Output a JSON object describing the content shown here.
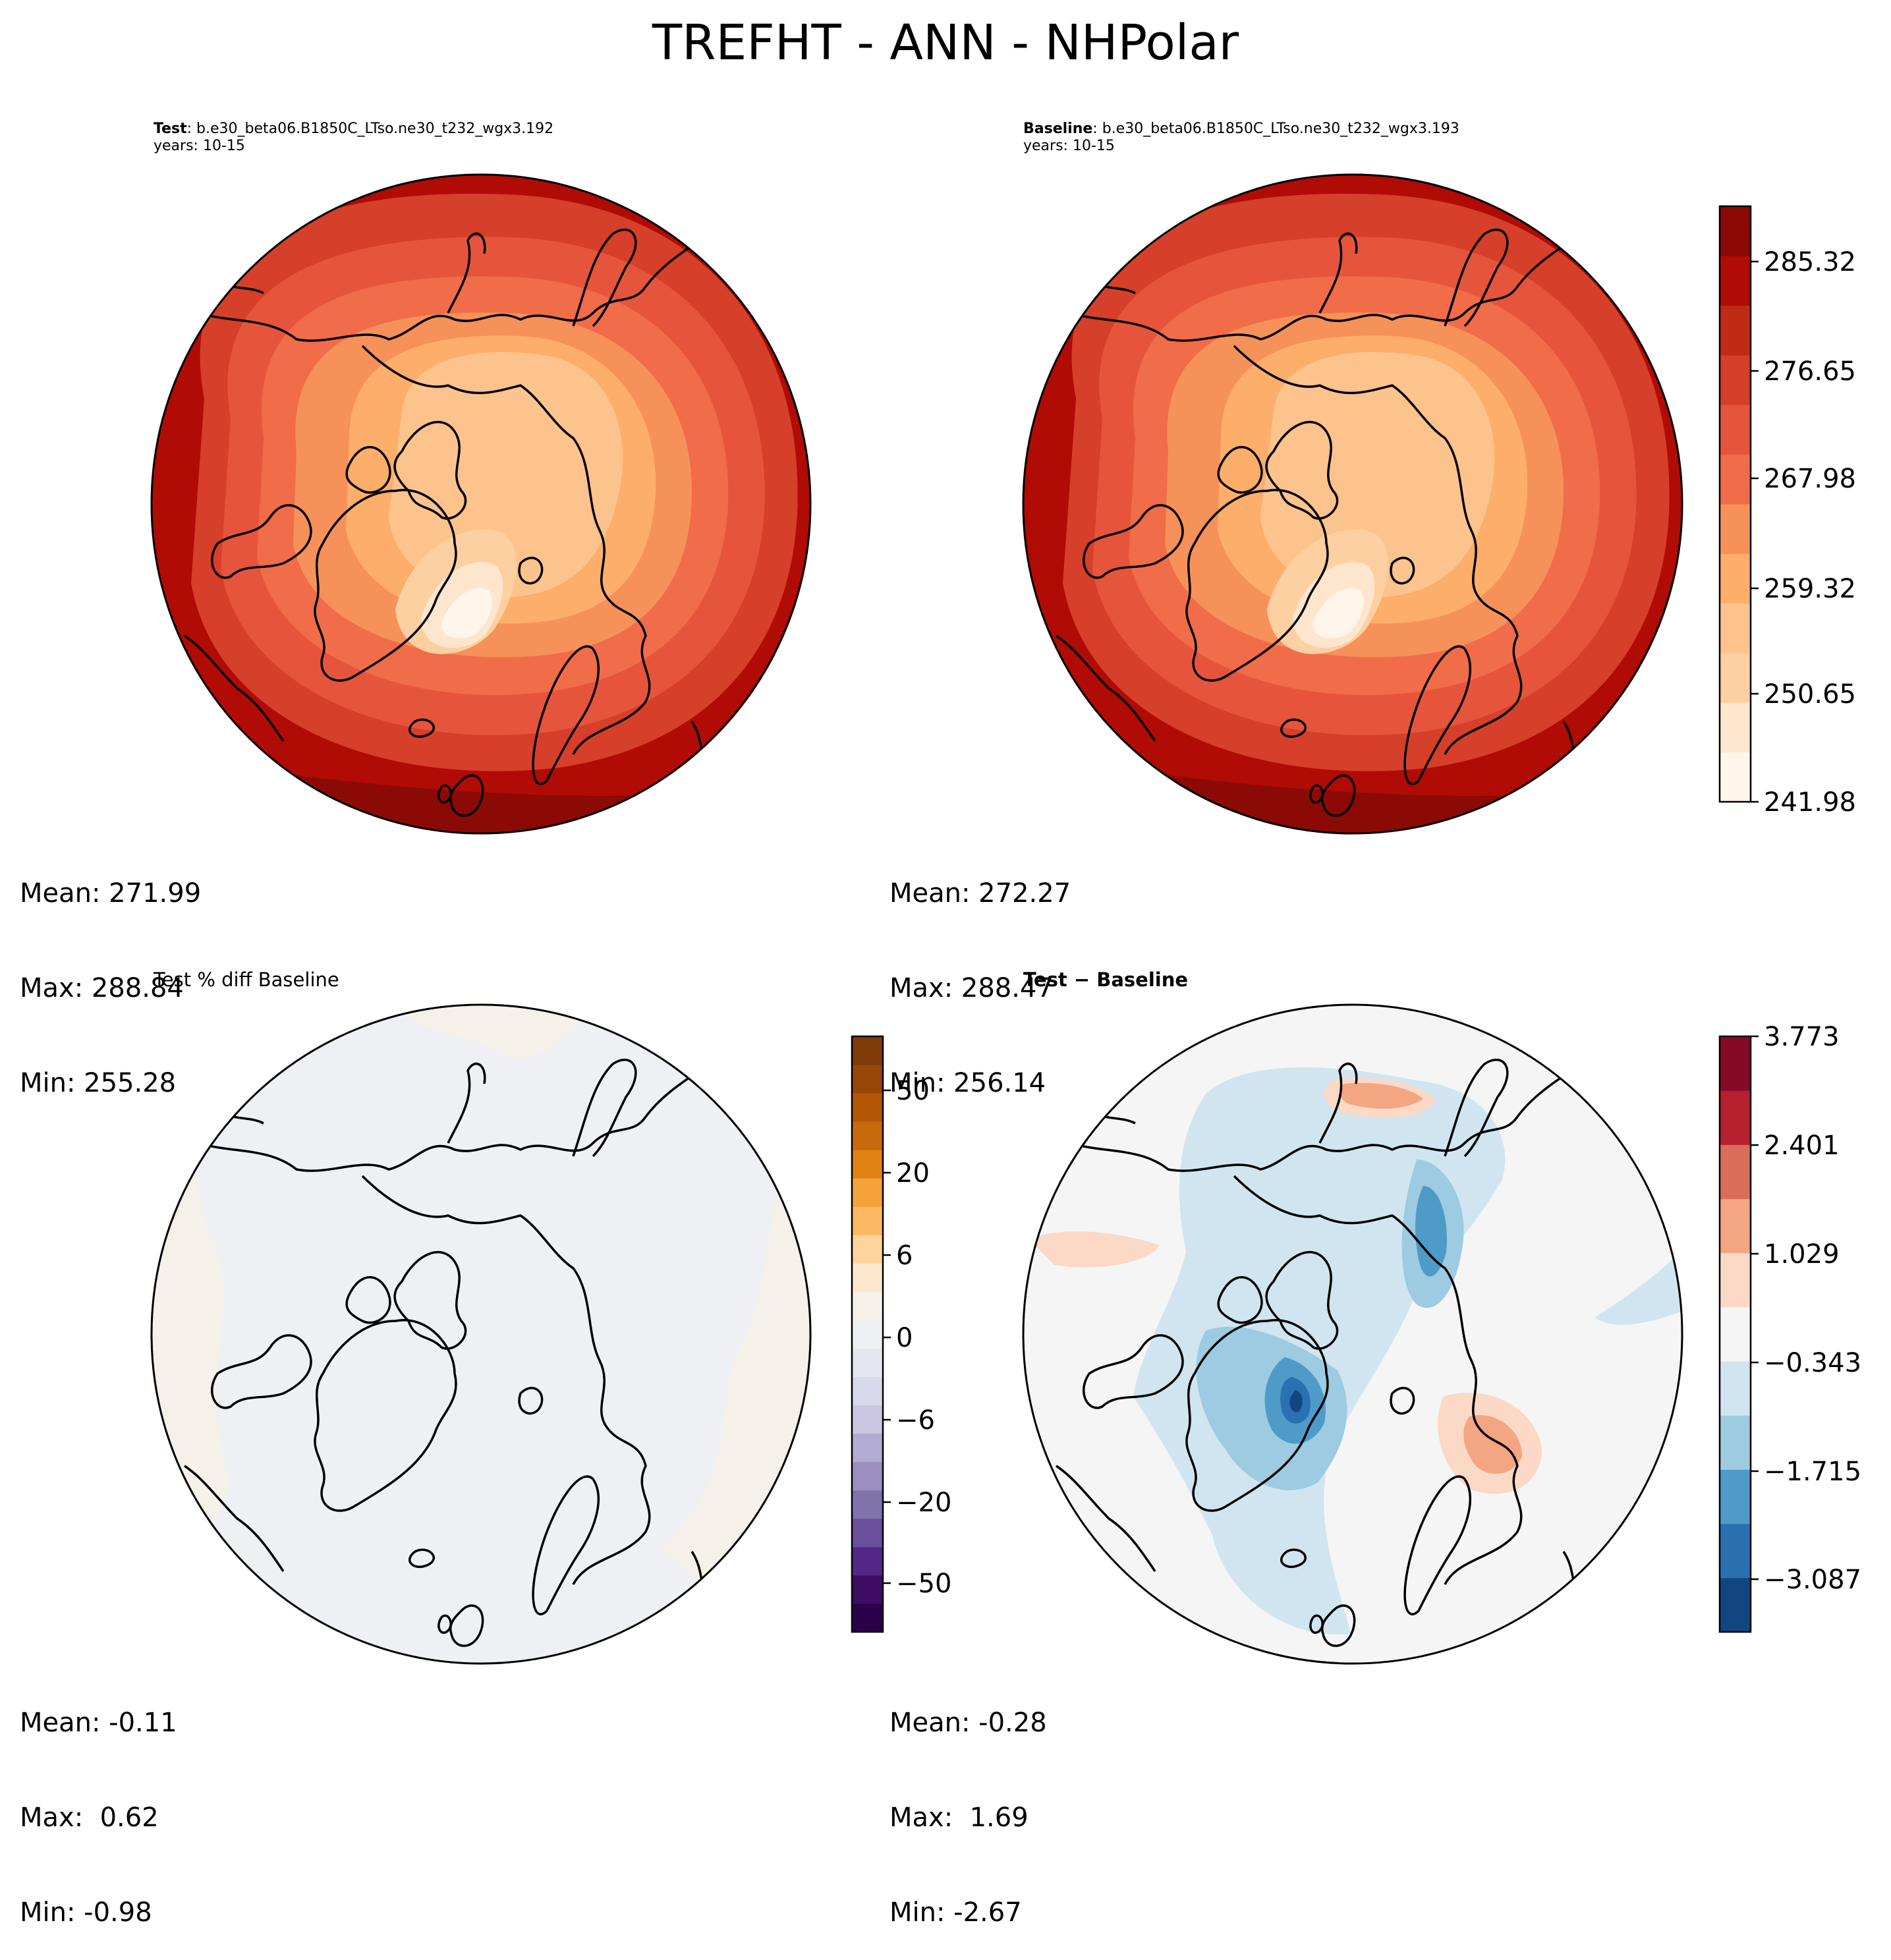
{
  "title": "TREFHT - ANN - NHPolar",
  "panels": {
    "test": {
      "label_bold": "Test",
      "label_rest": ": b.e30_beta06.B1850C_LTso.ne30_t232_wgx3.192",
      "years": "years: 10-15",
      "stats": {
        "mean": "Mean: 271.99",
        "max": "Max: 288.84",
        "min": "Min: 255.28"
      }
    },
    "baseline": {
      "label_bold": "Baseline",
      "label_rest": ": b.e30_beta06.B1850C_LTso.ne30_t232_wgx3.193",
      "years": "years: 10-15",
      "stats": {
        "mean": "Mean: 272.27",
        "max": "Max: 288.47",
        "min": "Min: 256.14"
      }
    },
    "pct_diff": {
      "label": "Test % diff Baseline",
      "stats": {
        "mean": "Mean: -0.11",
        "max": "Max:  0.62",
        "min": "Min: -0.98"
      }
    },
    "diff": {
      "label": "Test − Baseline",
      "stats": {
        "mean": "Mean: -0.28",
        "max": "Max:  1.69",
        "min": "Min: -2.67"
      }
    }
  },
  "colorbars": {
    "temperature": {
      "ticks": [
        "241.98",
        "250.65",
        "259.32",
        "267.98",
        "276.65",
        "285.32"
      ],
      "colors": [
        "#fff5eb",
        "#fee6ce",
        "#fdd0a2",
        "#fdc38d",
        "#fdae6b",
        "#f7915a",
        "#f16c49",
        "#e6553b",
        "#d63f29",
        "#c22a18",
        "#b00b04",
        "#8b0a05"
      ]
    },
    "percent": {
      "ticks": [
        "−50",
        "−20",
        "−6",
        "0",
        "6",
        "20",
        "50"
      ],
      "colors": [
        "#2d004b",
        "#3f0d63",
        "#542788",
        "#6a4f9d",
        "#8073ac",
        "#9b8fc0",
        "#b2abd2",
        "#cbc6e2",
        "#d8daeb",
        "#e6e6f0",
        "#eef0f4",
        "#f5f0e8",
        "#fbe8cf",
        "#fdd49e",
        "#fdb863",
        "#f4a23a",
        "#e08214",
        "#c8690c",
        "#b35806",
        "#96470a",
        "#7f3b08"
      ]
    },
    "difference": {
      "ticks": [
        "−3.087",
        "−1.715",
        "−0.343",
        "1.029",
        "2.401",
        "3.773"
      ],
      "colors": [
        "#114781",
        "#2a71b2",
        "#4f9bc7",
        "#9dcbe1",
        "#d1e5f0",
        "#f5f5f5",
        "#fbd9c6",
        "#f4a582",
        "#d96d5a",
        "#b6202f",
        "#860a25"
      ]
    }
  }
}
